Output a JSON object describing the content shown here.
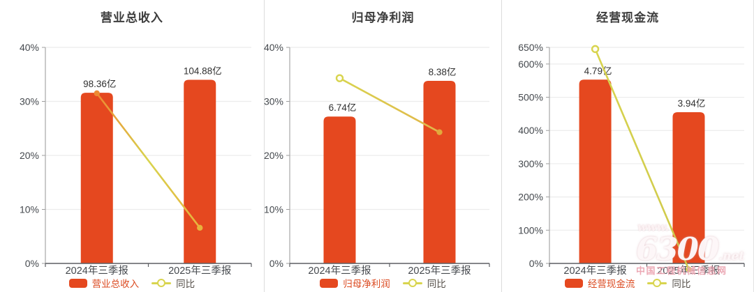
{
  "watermark": {
    "prefix": "www.",
    "number": "6300",
    "suffix": ".net",
    "caption": "中国工程机械信息网"
  },
  "chart_data": [
    {
      "type": "bar",
      "title": "营业总收入",
      "categories": [
        "2024年三季报",
        "2025年三季报"
      ],
      "y_axis": {
        "tick_labels": [
          "40%",
          "30%",
          "20%",
          "10%",
          "0%"
        ],
        "tick_values": [
          40,
          30,
          20,
          10,
          0
        ],
        "ylim": [
          0,
          40
        ],
        "grid": true
      },
      "bar_series": {
        "name": "营业总收入",
        "value_labels": [
          "98.36亿",
          "104.88亿"
        ],
        "plotted_axis_values": [
          31.6,
          34.0
        ]
      },
      "line_series": {
        "name": "同比",
        "values": [
          31.5,
          6.6
        ],
        "markers": [
          {
            "type": "solid",
            "color": "#ED8A33"
          },
          {
            "type": "solid",
            "color": "#E8B23C"
          }
        ]
      },
      "legend": {
        "bar": "营业总收入",
        "line": "同比",
        "legend_position": "bottom"
      },
      "colors": {
        "bar": "#E5481F",
        "line_gradient": [
          "#EE8A31",
          "#D8D44E",
          "#E8B23C"
        ],
        "legend_bar_text": "#DB4A20"
      }
    },
    {
      "type": "bar",
      "title": "归母净利润",
      "categories": [
        "2024年三季报",
        "2025年三季报"
      ],
      "y_axis": {
        "tick_labels": [
          "40%",
          "30%",
          "20%",
          "10%",
          "0%"
        ],
        "tick_values": [
          40,
          30,
          20,
          10,
          0
        ],
        "ylim": [
          0,
          40
        ],
        "grid": true
      },
      "bar_series": {
        "name": "归母净利润",
        "value_labels": [
          "6.74亿",
          "8.38亿"
        ],
        "plotted_axis_values": [
          27.2,
          33.8
        ]
      },
      "line_series": {
        "name": "同比",
        "values": [
          34.3,
          24.3
        ],
        "markers": [
          {
            "type": "hollow",
            "color": "#D8D44E"
          },
          {
            "type": "solid",
            "color": "#E2A93B"
          }
        ]
      },
      "legend": {
        "bar": "归母净利润",
        "line": "同比",
        "legend_position": "bottom"
      },
      "colors": {
        "bar": "#E5481F",
        "line_gradient": [
          "#D8D44E",
          "#E2B54A"
        ],
        "legend_bar_text": "#DB4A20"
      }
    },
    {
      "type": "bar",
      "title": "经营现金流",
      "categories": [
        "2024年三季报",
        "2025年三季报"
      ],
      "y_axis": {
        "tick_labels": [
          "650%",
          "600%",
          "500%",
          "400%",
          "300%",
          "200%",
          "100%",
          "0%"
        ],
        "tick_values": [
          650,
          600,
          500,
          400,
          300,
          200,
          100,
          0
        ],
        "ylim": [
          0,
          650
        ],
        "grid": true
      },
      "bar_series": {
        "name": "经营现金流",
        "value_labels": [
          "4.79亿",
          "3.94亿"
        ],
        "plotted_axis_values": [
          553,
          455
        ]
      },
      "line_series": {
        "name": "同比",
        "values": [
          645,
          -17.7
        ],
        "markers": [
          {
            "type": "hollow",
            "color": "#D8D44E"
          },
          {
            "type": "solid",
            "color": "#CFC94C"
          }
        ]
      },
      "legend": {
        "bar": "经营现金流",
        "line": "同比",
        "legend_position": "bottom"
      },
      "colors": {
        "bar": "#E5481F",
        "line_gradient": [
          "#D8D44E",
          "#CFC94C"
        ],
        "legend_bar_text": "#DB4A20"
      }
    }
  ]
}
